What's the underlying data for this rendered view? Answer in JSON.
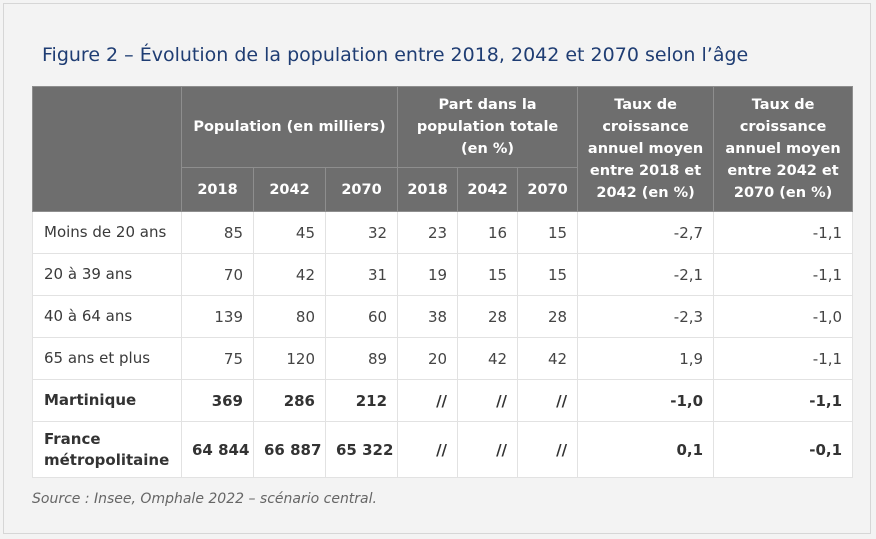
{
  "title": "Figure 2 – Évolution de la population entre 2018, 2042 et 2070 selon l’âge",
  "headers": {
    "population": "Population (en milliers)",
    "part": "Part dans la population totale (en %)",
    "taux1": "Taux de croissance annuel moyen entre 2018 et 2042 (en %)",
    "taux2": "Taux de croissance annuel moyen entre 2042 et 2070 (en %)",
    "years": [
      "2018",
      "2042",
      "2070",
      "2018",
      "2042",
      "2070"
    ]
  },
  "rows": [
    {
      "label": "Moins de 20 ans",
      "values": [
        "85",
        "45",
        "32",
        "23",
        "16",
        "15",
        "-2,7",
        "-1,1"
      ],
      "bold": false
    },
    {
      "label": "20 à 39 ans",
      "values": [
        "70",
        "42",
        "31",
        "19",
        "15",
        "15",
        "-2,1",
        "-1,1"
      ],
      "bold": false
    },
    {
      "label": "40 à 64 ans",
      "values": [
        "139",
        "80",
        "60",
        "38",
        "28",
        "28",
        "-2,3",
        "-1,0"
      ],
      "bold": false
    },
    {
      "label": "65 ans et plus",
      "values": [
        "75",
        "120",
        "89",
        "20",
        "42",
        "42",
        "1,9",
        "-1,1"
      ],
      "bold": false
    },
    {
      "label": "Martinique",
      "values": [
        "369",
        "286",
        "212",
        "//",
        "//",
        "//",
        "-1,0",
        "-1,1"
      ],
      "bold": true
    },
    {
      "label": "France métropolitaine",
      "values": [
        "64 844",
        "66 887",
        "65 322",
        "//",
        "//",
        "//",
        "0,1",
        "-0,1"
      ],
      "bold": true
    }
  ],
  "source": "Source : Insee, Omphale 2022 – scénario central."
}
